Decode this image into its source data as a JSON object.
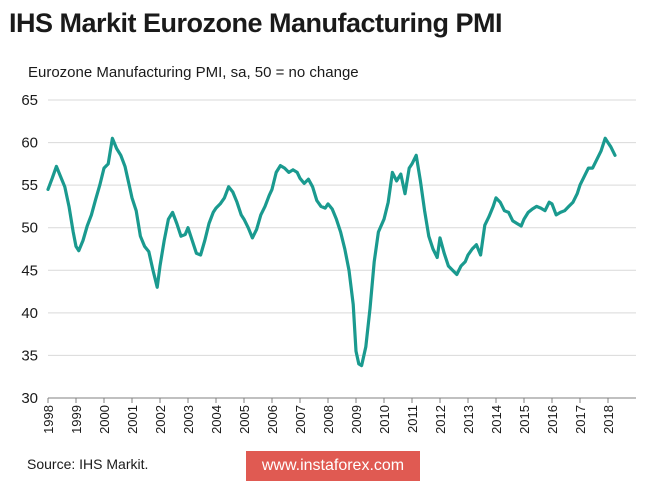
{
  "header": {
    "title": "IHS Markit Eurozone Manufacturing PMI",
    "subtitle": "Eurozone Manufacturing PMI, sa, 50 = no change"
  },
  "footer": {
    "source": "Source: IHS Markit.",
    "watermark": "www.instaforex.com"
  },
  "colors": {
    "series": "#1a9a8f",
    "grid": "#d9d9d9",
    "watermark_bg": "#e05a52"
  },
  "chart_data": {
    "type": "line",
    "title": "IHS Markit Eurozone Manufacturing PMI",
    "subtitle": "Eurozone Manufacturing PMI, sa, 50 = no change",
    "xlabel": "",
    "ylabel": "",
    "ylim": [
      30,
      65
    ],
    "xlim": [
      1998.0,
      2019.0
    ],
    "y_ticks": [
      30,
      35,
      40,
      45,
      50,
      55,
      60,
      65
    ],
    "x_ticks": [
      "1998",
      "1999",
      "2000",
      "2001",
      "2002",
      "2003",
      "2004",
      "2005",
      "2006",
      "2007",
      "2008",
      "2009",
      "2010",
      "2011",
      "2012",
      "2013",
      "2014",
      "2015",
      "2016",
      "2017",
      "2018"
    ],
    "grid": "horizontal",
    "series": [
      {
        "x": [
          1998.0,
          1998.15,
          1998.3,
          1998.45,
          1998.6,
          1998.75,
          1998.9,
          1999.0,
          1999.1,
          1999.25,
          1999.4,
          1999.55,
          1999.7,
          1999.85,
          2000.0,
          2000.15,
          2000.3,
          2000.45,
          2000.6,
          2000.75,
          2000.9,
          2001.0,
          2001.15,
          2001.3,
          2001.45,
          2001.6,
          2001.75,
          2001.9,
          2002.0,
          2002.15,
          2002.3,
          2002.45,
          2002.6,
          2002.75,
          2002.9,
          2003.0,
          2003.15,
          2003.3,
          2003.45,
          2003.6,
          2003.75,
          2003.9,
          2004.0,
          2004.15,
          2004.3,
          2004.45,
          2004.6,
          2004.75,
          2004.9,
          2005.0,
          2005.15,
          2005.3,
          2005.45,
          2005.6,
          2005.75,
          2005.9,
          2006.0,
          2006.15,
          2006.3,
          2006.45,
          2006.6,
          2006.75,
          2006.9,
          2007.0,
          2007.15,
          2007.3,
          2007.45,
          2007.6,
          2007.75,
          2007.9,
          2008.0,
          2008.15,
          2008.3,
          2008.45,
          2008.6,
          2008.75,
          2008.9,
          2009.0,
          2009.1,
          2009.2,
          2009.35,
          2009.5,
          2009.65,
          2009.8,
          2010.0,
          2010.15,
          2010.3,
          2010.45,
          2010.6,
          2010.75,
          2010.9,
          2011.0,
          2011.15,
          2011.3,
          2011.45,
          2011.6,
          2011.75,
          2011.9,
          2012.0,
          2012.15,
          2012.3,
          2012.45,
          2012.6,
          2012.75,
          2012.9,
          2013.0,
          2013.15,
          2013.3,
          2013.45,
          2013.6,
          2013.75,
          2013.9,
          2014.0,
          2014.15,
          2014.3,
          2014.45,
          2014.6,
          2014.75,
          2014.9,
          2015.0,
          2015.15,
          2015.3,
          2015.45,
          2015.6,
          2015.75,
          2015.9,
          2016.0,
          2016.15,
          2016.3,
          2016.45,
          2016.6,
          2016.75,
          2016.9,
          2017.0,
          2017.15,
          2017.3,
          2017.45,
          2017.6,
          2017.75,
          2017.9,
          2018.0,
          2018.1,
          2018.25
        ],
        "y": [
          54.5,
          55.8,
          57.2,
          56.0,
          54.8,
          52.5,
          49.5,
          47.8,
          47.3,
          48.5,
          50.2,
          51.5,
          53.3,
          55.0,
          57.0,
          57.5,
          60.5,
          59.3,
          58.5,
          57.2,
          55.0,
          53.5,
          52.0,
          49.0,
          47.8,
          47.2,
          45.0,
          43.0,
          45.5,
          48.5,
          51.0,
          51.8,
          50.5,
          49.0,
          49.2,
          50.0,
          48.5,
          47.0,
          46.8,
          48.5,
          50.5,
          51.8,
          52.3,
          52.8,
          53.5,
          54.8,
          54.2,
          53.0,
          51.5,
          51.0,
          50.0,
          48.8,
          49.8,
          51.5,
          52.5,
          53.8,
          54.5,
          56.5,
          57.3,
          57.0,
          56.5,
          56.8,
          56.5,
          55.8,
          55.2,
          55.7,
          54.8,
          53.2,
          52.5,
          52.3,
          52.8,
          52.2,
          51.0,
          49.5,
          47.5,
          45.0,
          41.0,
          35.5,
          34.0,
          33.8,
          36.0,
          40.5,
          46.0,
          49.5,
          51.0,
          53.0,
          56.5,
          55.5,
          56.3,
          54.0,
          57.0,
          57.5,
          58.5,
          55.5,
          52.0,
          49.0,
          47.5,
          46.5,
          48.8,
          47.0,
          45.5,
          45.0,
          44.5,
          45.5,
          46.0,
          46.8,
          47.5,
          48.0,
          46.8,
          50.3,
          51.3,
          52.5,
          53.5,
          53.0,
          52.0,
          51.8,
          50.8,
          50.5,
          50.2,
          51.0,
          51.8,
          52.2,
          52.5,
          52.3,
          52.0,
          53.0,
          52.8,
          51.5,
          51.8,
          52.0,
          52.5,
          53.0,
          54.0,
          55.0,
          56.0,
          57.0,
          57.0,
          58.0,
          59.0,
          60.5,
          60.0,
          59.5,
          58.5
        ]
      }
    ]
  }
}
